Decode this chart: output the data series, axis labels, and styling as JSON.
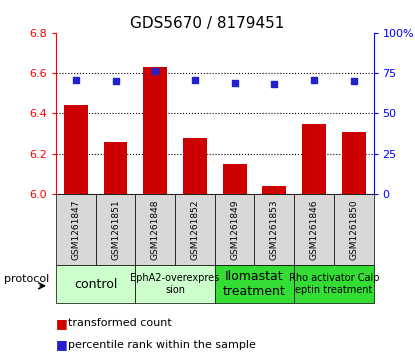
{
  "title": "GDS5670 / 8179451",
  "samples": [
    "GSM1261847",
    "GSM1261851",
    "GSM1261848",
    "GSM1261852",
    "GSM1261849",
    "GSM1261853",
    "GSM1261846",
    "GSM1261850"
  ],
  "bar_values": [
    6.44,
    6.26,
    6.63,
    6.28,
    6.15,
    6.04,
    6.35,
    6.31
  ],
  "dot_values": [
    71,
    70,
    76,
    71,
    69,
    68,
    71,
    70
  ],
  "ylim_left": [
    6.0,
    6.8
  ],
  "ylim_right": [
    0,
    100
  ],
  "yticks_left": [
    6.0,
    6.2,
    6.4,
    6.6,
    6.8
  ],
  "yticks_right": [
    0,
    25,
    50,
    75,
    100
  ],
  "bar_color": "#cc0000",
  "dot_color": "#2222cc",
  "bar_width": 0.6,
  "protocols": [
    {
      "label": "control",
      "start": 0,
      "end": 2,
      "color": "#ccffcc",
      "text_size": 9
    },
    {
      "label": "EphA2-overexpres\nsion",
      "start": 2,
      "end": 4,
      "color": "#ccffcc",
      "text_size": 7
    },
    {
      "label": "Ilomastat\ntreatment",
      "start": 4,
      "end": 6,
      "color": "#33dd33",
      "text_size": 9
    },
    {
      "label": "Rho activator Calp\neptin treatment",
      "start": 6,
      "end": 8,
      "color": "#33dd33",
      "text_size": 7
    }
  ],
  "protocol_label": "protocol",
  "legend_bar_label": "transformed count",
  "legend_dot_label": "percentile rank within the sample",
  "background_color": "#ffffff",
  "sample_label_bg": "#d8d8d8",
  "grid_color": "#000000",
  "title_fontsize": 11,
  "tick_fontsize": 8,
  "legend_fontsize": 8
}
